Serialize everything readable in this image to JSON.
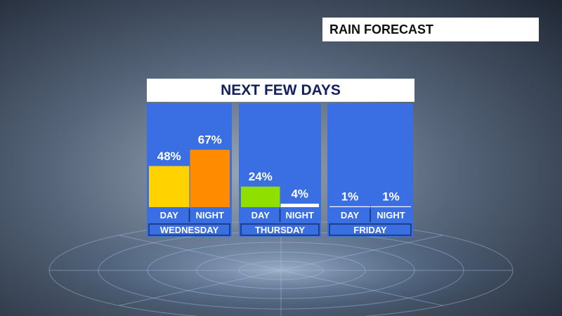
{
  "chart_data": {
    "type": "bar",
    "label": "RAIN FORECAST",
    "title": "NEXT FEW DAYS",
    "groups": [
      "WEDNESDAY",
      "THURSDAY",
      "FRIDAY"
    ],
    "categories": [
      "DAY",
      "NIGHT",
      "DAY",
      "NIGHT",
      "DAY",
      "NIGHT"
    ],
    "values": [
      48,
      67,
      24,
      4,
      1,
      1
    ],
    "value_labels": [
      "48%",
      "67%",
      "24%",
      "4%",
      "1%",
      "1%"
    ],
    "colors": [
      "#ffd200",
      "#ff8c00",
      "#8fe000",
      "#ffffff",
      "#ffffff",
      "#ffffff"
    ]
  }
}
